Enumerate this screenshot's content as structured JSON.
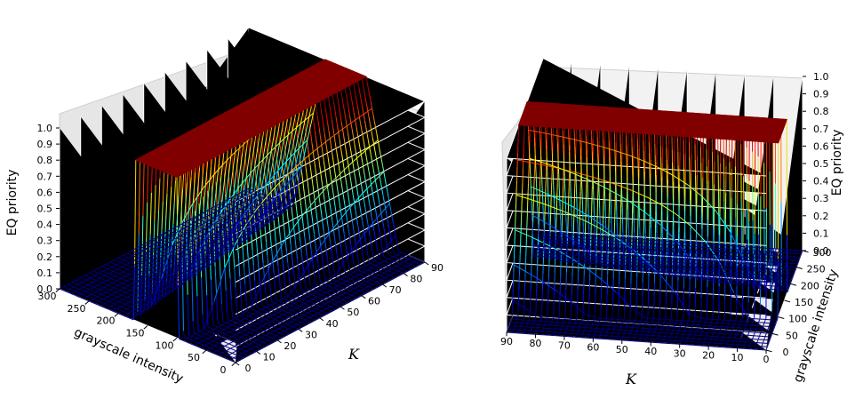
{
  "chart_data": [
    {
      "type": "surface-wireframe-3d",
      "view": "left",
      "colormap": "jet",
      "x_axis": {
        "label": "grayscale intensity",
        "range": [
          0,
          300
        ],
        "ticks": [
          "0",
          "50",
          "100",
          "150",
          "200",
          "250",
          "300"
        ]
      },
      "y_axis": {
        "label": "K",
        "range": [
          0,
          90
        ],
        "ticks": [
          "90",
          "80",
          "70",
          "60",
          "50",
          "40",
          "30",
          "20",
          "10",
          "0"
        ]
      },
      "z_axis": {
        "label": "EQ priority",
        "range": [
          0.0,
          1.0
        ],
        "ticks": [
          "0.0",
          "0.1",
          "0.2",
          "0.3",
          "0.4",
          "0.5",
          "0.6",
          "0.7",
          "0.8",
          "0.9",
          "1.0"
        ]
      },
      "surface": {
        "plateau_value": 1.0,
        "plateau_start": 100,
        "plateau_end": 170,
        "floor_value": 0.0,
        "rise_width_at_K_min": 3,
        "rise_width_at_K_max": 55
      }
    },
    {
      "type": "surface-wireframe-3d",
      "view": "right",
      "colormap": "jet",
      "x_axis": {
        "label": "grayscale intensity",
        "range": [
          0,
          300
        ],
        "ticks": [
          "0",
          "50",
          "100",
          "150",
          "200",
          "250",
          "300"
        ]
      },
      "y_axis": {
        "label": "K",
        "range": [
          0,
          90
        ],
        "ticks": [
          "90",
          "80",
          "70",
          "60",
          "50",
          "40",
          "30",
          "20",
          "10",
          "0"
        ]
      },
      "z_axis": {
        "label": "EQ priority",
        "range": [
          0.0,
          1.0
        ],
        "ticks": [
          "0.0",
          "0.1",
          "0.2",
          "0.3",
          "0.4",
          "0.5",
          "0.6",
          "0.7",
          "0.8",
          "0.9",
          "1.0"
        ]
      },
      "surface": {
        "plateau_value": 1.0,
        "plateau_start": 100,
        "plateau_end": 170,
        "floor_value": 0.0,
        "rise_width_at_K_min": 3,
        "rise_width_at_K_max": 55
      }
    }
  ]
}
